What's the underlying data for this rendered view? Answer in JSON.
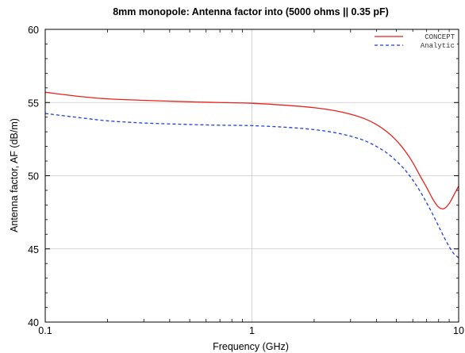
{
  "chart_data": {
    "type": "line",
    "title": "8mm monopole: Antenna factor into (5000 ohms || 0.35 pF)",
    "xlabel": "Frequency (GHz)",
    "ylabel": "Antenna factor, AF (dB/m)",
    "xscale": "log",
    "xlim": [
      0.1,
      10
    ],
    "ylim": [
      40,
      60
    ],
    "x_ticks": [
      0.1,
      1,
      10
    ],
    "x_tick_labels": [
      "0.1",
      "1",
      "10"
    ],
    "y_ticks": [
      40,
      45,
      50,
      55,
      60
    ],
    "y_tick_labels": [
      "40",
      "45",
      "50",
      "55",
      "60"
    ],
    "grid": true,
    "legend_position": "top-right",
    "series": [
      {
        "name": "CONCEPT",
        "color": "#e8221e",
        "dash": "solid",
        "x": [
          0.1,
          0.15,
          0.2,
          0.3,
          0.5,
          0.7,
          1.0,
          1.5,
          2.0,
          2.5,
          3.0,
          3.5,
          4.0,
          4.5,
          5.0,
          5.5,
          6.0,
          6.5,
          7.0,
          7.5,
          8.0,
          8.5,
          9.0,
          9.5,
          10.0
        ],
        "y": [
          55.7,
          55.4,
          55.25,
          55.15,
          55.05,
          55.0,
          54.95,
          54.8,
          54.65,
          54.45,
          54.2,
          53.9,
          53.5,
          53.0,
          52.4,
          51.7,
          50.9,
          50.0,
          49.2,
          48.4,
          47.85,
          47.75,
          48.1,
          48.7,
          49.3
        ]
      },
      {
        "name": "Analytic",
        "color": "#1f3fe0",
        "dash": "dashed",
        "x": [
          0.1,
          0.15,
          0.2,
          0.3,
          0.5,
          0.7,
          1.0,
          1.5,
          2.0,
          2.5,
          3.0,
          3.5,
          4.0,
          4.5,
          5.0,
          5.5,
          6.0,
          6.5,
          7.0,
          7.5,
          8.0,
          8.5,
          9.0,
          9.5,
          10.0
        ],
        "y": [
          54.25,
          53.95,
          53.75,
          53.6,
          53.5,
          53.45,
          53.42,
          53.3,
          53.15,
          52.95,
          52.7,
          52.4,
          52.0,
          51.55,
          51.0,
          50.4,
          49.7,
          48.95,
          48.15,
          47.35,
          46.55,
          45.8,
          45.15,
          44.65,
          44.4
        ]
      }
    ]
  }
}
